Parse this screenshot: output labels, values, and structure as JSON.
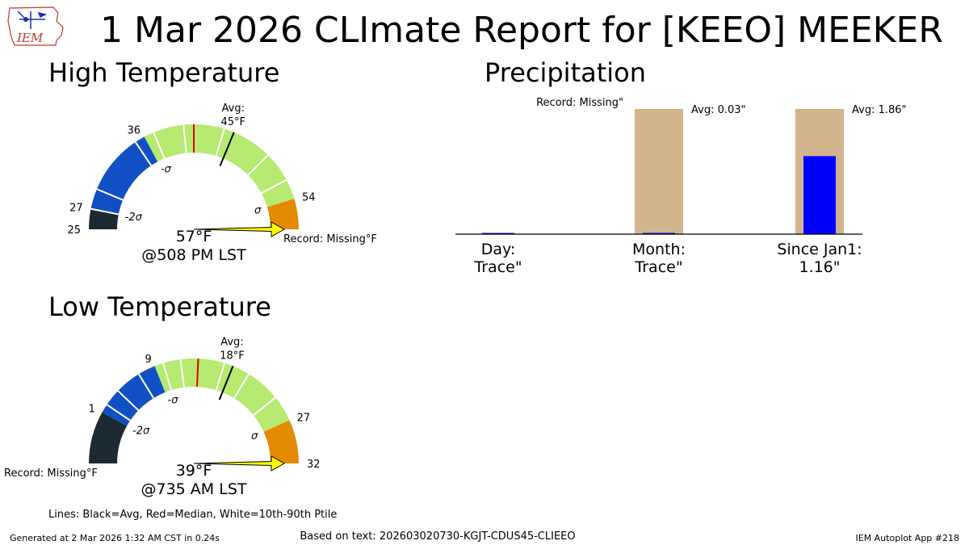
{
  "title": "1 Mar 2026 CLImate Report for [KEEO] MEEKER",
  "logo_text": "IEM",
  "legend_note": "Lines: Black=Avg, Red=Median, White=10th-90th Ptile",
  "footer": {
    "generated": "Generated at 2 Mar 2026 1:32 AM CST in 0.24s",
    "based_on": "Based on text: 202603020730-KGJT-CDUS45-CLIEEO",
    "app": "IEM Autoplot App #218"
  },
  "colors": {
    "dark": "#1b2a33",
    "cold": "#1150c4",
    "normal": "#b6ea70",
    "warm": "#e48a00",
    "arrow": "#ffff00",
    "median": "#e00000",
    "precip_avg": "#d2b48c",
    "precip_obs": "#0000ff"
  },
  "chart_data": [
    {
      "type": "gauge",
      "title": "High Temperature",
      "unit": "°F",
      "range": [
        25,
        57
      ],
      "avg": 45,
      "median": 41,
      "sigma_minus_2": 27,
      "sigma_minus_1": 36,
      "sigma_plus_1": 54,
      "percentile_10_90": [
        36,
        54
      ],
      "ptile_lines": [
        27,
        29,
        35,
        37,
        40,
        44,
        49,
        52
      ],
      "ticks": [
        25,
        27,
        36,
        54
      ],
      "sigma_labels": [
        "-2σ",
        "-σ",
        "σ"
      ],
      "avg_label": "Avg:",
      "avg_value_label": "45°F",
      "observed": 57,
      "observed_label": "57°F",
      "time_label": "@508 PM LST",
      "record_label": "Record: Missing°F"
    },
    {
      "type": "gauge",
      "title": "Low Temperature",
      "unit": "°F",
      "range": [
        -5,
        32
      ],
      "avg": 18,
      "median": 14,
      "sigma_minus_2": 1,
      "sigma_minus_1": 9,
      "sigma_plus_1": 27,
      "percentile_10_90": [
        9,
        27
      ],
      "ptile_lines": [
        2,
        4,
        7,
        10,
        12,
        17,
        20,
        24
      ],
      "ticks": [
        1,
        9,
        27,
        32
      ],
      "sigma_labels": [
        "-2σ",
        "-σ",
        "σ"
      ],
      "avg_label": "Avg:",
      "avg_value_label": "18°F",
      "observed": 39,
      "observed_label": "39°F",
      "time_label": "@735 AM LST",
      "record_label": "Record: Missing°F"
    },
    {
      "type": "bar",
      "title": "Precipitation",
      "unit": "in",
      "ylim": [
        0,
        2.0
      ],
      "categories": [
        "Day",
        "Month",
        "Since Jan1"
      ],
      "category_labels": [
        "Day:",
        "Month:",
        "Since Jan1:"
      ],
      "observed_labels": [
        "Trace\"",
        "Trace\"",
        "1.16\""
      ],
      "averages": [
        null,
        0.03,
        1.86
      ],
      "observed": [
        0.0001,
        0.0001,
        1.16
      ],
      "avg_labels": [
        "",
        "Avg: 0.03\"",
        "Avg: 1.86\""
      ],
      "record_label": "Record: Missing\""
    }
  ]
}
